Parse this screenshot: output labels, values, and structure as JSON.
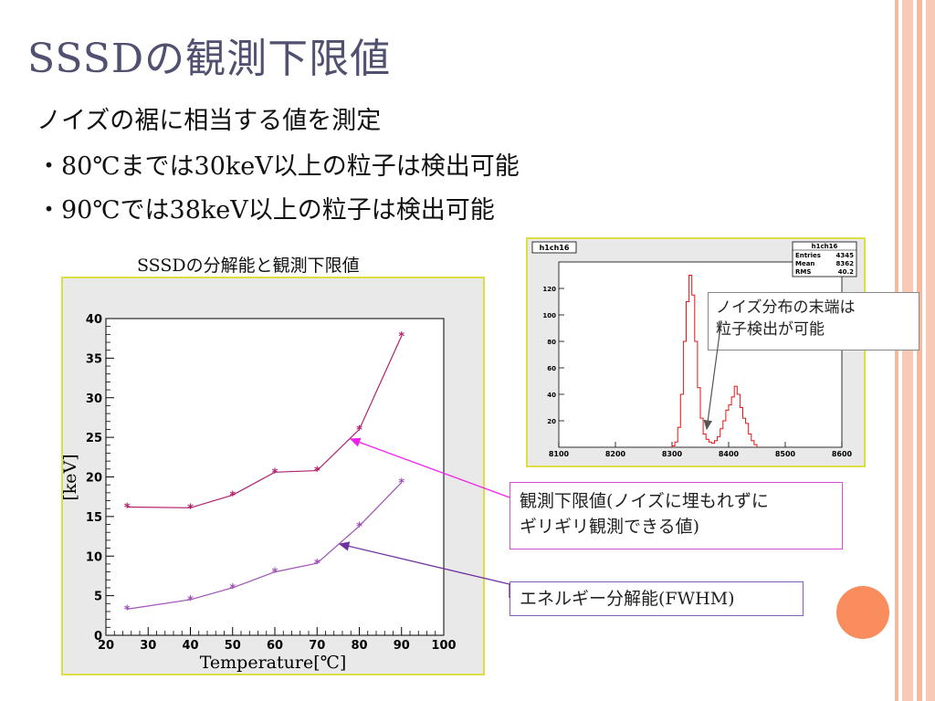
{
  "slide": {
    "title": "SSSDの観測下限値",
    "bullets": [
      "ノイズの裾に相当する値を測定",
      "・80℃までは30keV以上の粒子は検出可能",
      "・90℃では38keV以上の粒子は検出可能"
    ],
    "chart_caption": "SSSDの分解能と観測下限値",
    "callouts": {
      "noise_edge": [
        "ノイズ分布の末端は",
        "粒子検出が可能"
      ],
      "threshold": [
        "観測下限値(ノイズに埋もれずに",
        "ギリギリ観測できる値)"
      ],
      "resolution": "エネルギー分解能(FWHM)"
    },
    "colors": {
      "accent_orange": "#f98d5e",
      "stripe": "#f6b9a0",
      "threshold_series": "#b0206e",
      "resolution_series": "#a050b8",
      "arrow_magenta": "#ee22ee",
      "arrow_purple": "#7030a0"
    }
  },
  "chart_data": [
    {
      "type": "line",
      "xlabel": "Temperature[℃]",
      "ylabel": "[keV]",
      "xlim": [
        20,
        100
      ],
      "ylim": [
        0,
        40
      ],
      "x_ticks": [
        "20",
        "30",
        "40",
        "50",
        "60",
        "70",
        "80",
        "90",
        "100"
      ],
      "y_ticks": [
        "0",
        "5",
        "10",
        "15",
        "20",
        "25",
        "30",
        "35",
        "40"
      ],
      "grid": false,
      "series": [
        {
          "marker": "star",
          "x": [
            25,
            40,
            50,
            60,
            70,
            80,
            90
          ],
          "y": [
            16.2,
            16.1,
            17.7,
            20.6,
            20.8,
            26.0,
            37.8
          ]
        },
        {
          "marker": "star",
          "x": [
            25,
            40,
            50,
            60,
            70,
            80,
            90
          ],
          "y": [
            3.3,
            4.5,
            6.0,
            8.0,
            9.1,
            13.8,
            19.3
          ]
        }
      ]
    },
    {
      "type": "histogram",
      "tab_label": "h1ch16",
      "stats": {
        "title": "h1ch16",
        "rows": [
          {
            "label": "Entries",
            "value": "4345"
          },
          {
            "label": "Mean",
            "value": "8362"
          },
          {
            "label": "RMS",
            "value": "40.2"
          }
        ]
      },
      "xlim": [
        8100,
        8600
      ],
      "ylim": [
        0,
        140
      ],
      "x_ticks": [
        "8100",
        "8200",
        "8300",
        "8400",
        "8500",
        "8600"
      ],
      "y_ticks": [
        "20",
        "40",
        "60",
        "80",
        "100",
        "120"
      ],
      "bins": [
        [
          8300,
          1
        ],
        [
          8305,
          4
        ],
        [
          8310,
          15
        ],
        [
          8315,
          40
        ],
        [
          8320,
          80
        ],
        [
          8325,
          110
        ],
        [
          8330,
          130
        ],
        [
          8335,
          115
        ],
        [
          8340,
          80
        ],
        [
          8345,
          45
        ],
        [
          8350,
          22
        ],
        [
          8355,
          10
        ],
        [
          8360,
          6
        ],
        [
          8365,
          4
        ],
        [
          8370,
          3
        ],
        [
          8375,
          5
        ],
        [
          8380,
          8
        ],
        [
          8385,
          14
        ],
        [
          8390,
          20
        ],
        [
          8395,
          28
        ],
        [
          8400,
          32
        ],
        [
          8405,
          38
        ],
        [
          8410,
          46
        ],
        [
          8415,
          40
        ],
        [
          8420,
          30
        ],
        [
          8425,
          22
        ],
        [
          8430,
          18
        ],
        [
          8435,
          10
        ],
        [
          8440,
          5
        ],
        [
          8445,
          2
        ]
      ]
    }
  ]
}
